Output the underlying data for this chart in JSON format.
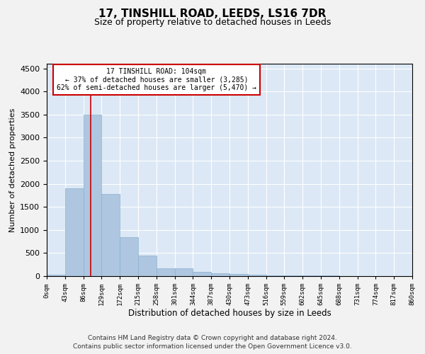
{
  "title": "17, TINSHILL ROAD, LEEDS, LS16 7DR",
  "subtitle": "Size of property relative to detached houses in Leeds",
  "xlabel": "Distribution of detached houses by size in Leeds",
  "ylabel": "Number of detached properties",
  "bar_color": "#aec6e0",
  "bar_edge_color": "#8ab0d0",
  "background_color": "#dce8f5",
  "grid_color": "#ffffff",
  "annotation_box_color": "#cc0000",
  "annotation_line_color": "#cc0000",
  "property_size": 104,
  "annotation_text_line1": "17 TINSHILL ROAD: 104sqm",
  "annotation_text_line2": "← 37% of detached houses are smaller (3,285)",
  "annotation_text_line3": "62% of semi-detached houses are larger (5,470) →",
  "footer_line1": "Contains HM Land Registry data © Crown copyright and database right 2024.",
  "footer_line2": "Contains public sector information licensed under the Open Government Licence v3.0.",
  "bin_edges": [
    0,
    43,
    86,
    129,
    172,
    215,
    258,
    301,
    344,
    387,
    430,
    473,
    516,
    559,
    602,
    645,
    688,
    731,
    774,
    817,
    860
  ],
  "bar_heights": [
    30,
    1900,
    3500,
    1780,
    840,
    450,
    175,
    170,
    90,
    60,
    50,
    35,
    20,
    15,
    10,
    8,
    5,
    4,
    3,
    2
  ],
  "ylim": [
    0,
    4600
  ],
  "yticks": [
    0,
    500,
    1000,
    1500,
    2000,
    2500,
    3000,
    3500,
    4000,
    4500
  ],
  "tick_labels": [
    "0sqm",
    "43sqm",
    "86sqm",
    "129sqm",
    "172sqm",
    "215sqm",
    "258sqm",
    "301sqm",
    "344sqm",
    "387sqm",
    "430sqm",
    "473sqm",
    "516sqm",
    "559sqm",
    "602sqm",
    "645sqm",
    "688sqm",
    "731sqm",
    "774sqm",
    "817sqm",
    "860sqm"
  ]
}
